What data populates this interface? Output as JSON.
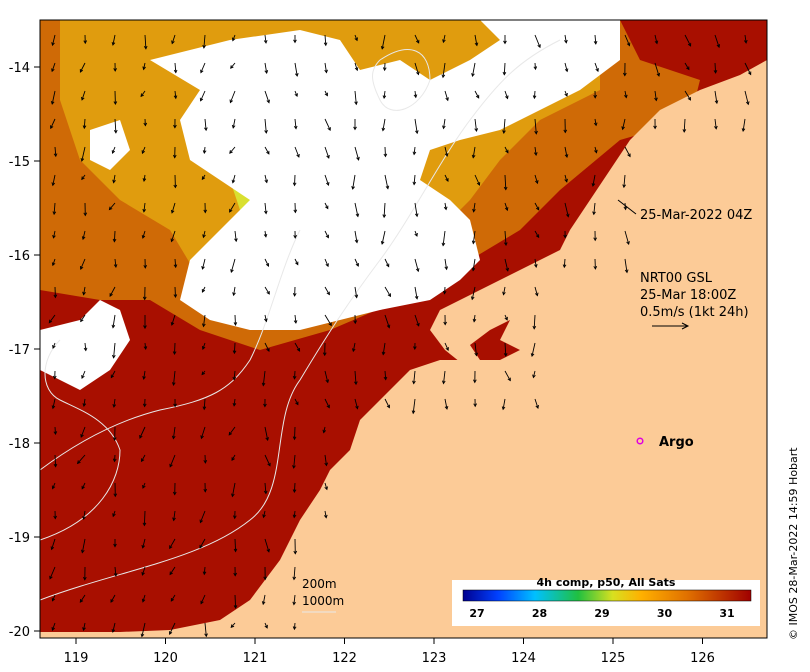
{
  "map": {
    "x_axis": {
      "ticks": [
        "119",
        "120",
        "121",
        "122",
        "123",
        "124",
        "125",
        "126"
      ]
    },
    "y_axis": {
      "ticks": [
        "-14",
        "-15",
        "-16",
        "-17",
        "-18",
        "-19",
        "-20"
      ]
    },
    "annotations": {
      "timestamp": "25-Mar-2022 04Z",
      "current_model": "NRT00 GSL",
      "current_time": "25-Mar 18:00Z",
      "current_scale": "0.5m/s (1kt 24h)",
      "argo_label": "Argo",
      "contour_200": "200m",
      "contour_1000": "1000m"
    },
    "colorbar": {
      "title": "4h comp, p50, All Sats",
      "ticks": [
        "27",
        "28",
        "29",
        "30",
        "31"
      ]
    },
    "credit": "© IMOS 28-Mar-2022 14:59 Hobart",
    "colors": {
      "land": "#fccb97",
      "hot": "#a80f00",
      "warm": "#cf6a06",
      "mid": "#e09c0e",
      "cool": "#d9e030",
      "green": "#3fbf3a",
      "cyan": "#26b3c0",
      "argo_marker": "#e000e0"
    }
  }
}
